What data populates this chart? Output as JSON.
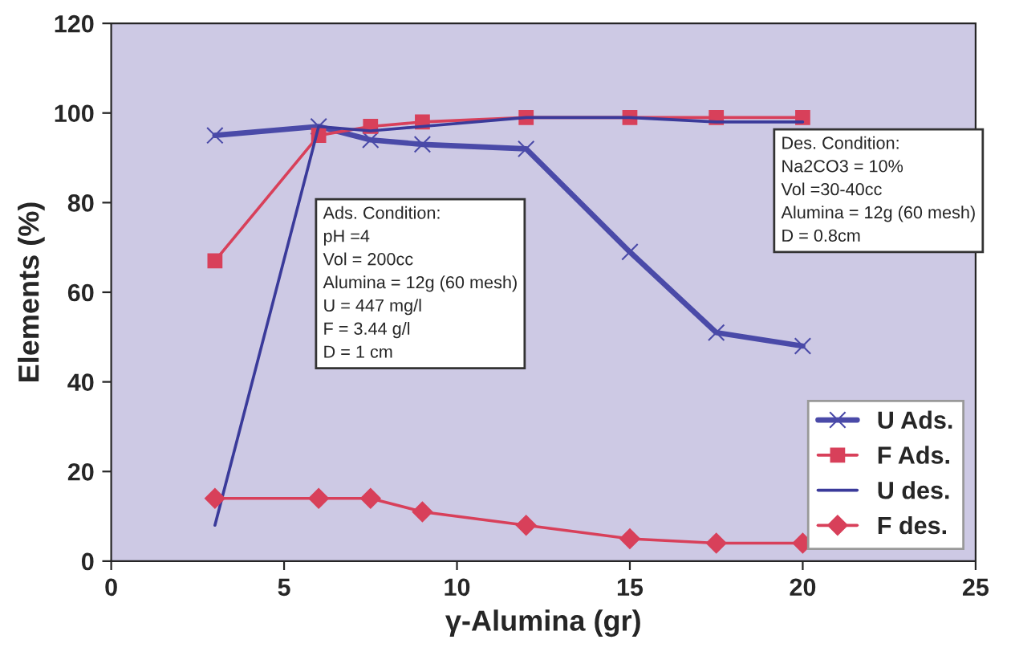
{
  "chart_data": {
    "type": "line",
    "xlabel": "γ-Alumina (gr)",
    "ylabel": "Elements (%)",
    "x": [
      3,
      6,
      7.5,
      9,
      12,
      15,
      17.5,
      20
    ],
    "series": [
      {
        "name": "U Ads.",
        "color": "#4a4aa8",
        "marker": "cross",
        "values": [
          95,
          97,
          94,
          93,
          92,
          69,
          51,
          48
        ]
      },
      {
        "name": "F Ads.",
        "color": "#d8405a",
        "marker": "square",
        "values": [
          67,
          95,
          97,
          98,
          99,
          99,
          99,
          99
        ]
      },
      {
        "name": "U des.",
        "color": "#3a3a9a",
        "marker": "none",
        "values": [
          8,
          97,
          96,
          97,
          99,
          99,
          98,
          98
        ]
      },
      {
        "name": "F des.",
        "color": "#d8405a",
        "marker": "diamond",
        "values": [
          14,
          14,
          14,
          11,
          8,
          5,
          4,
          4
        ]
      }
    ],
    "xlim": [
      0,
      25
    ],
    "xticks": [
      0,
      5,
      10,
      15,
      20,
      25
    ],
    "ylim": [
      0,
      120
    ],
    "yticks": [
      0,
      20,
      40,
      60,
      80,
      100,
      120
    ],
    "grid": false,
    "legend": "bottom right",
    "annotations": [
      "Ads. Condition:\npH =4\nVol = 200cc\nAlumina = 12g (60 mesh)\nU = 447 mg/l\nF = 3.44 g/l\nD = 1 cm",
      "Des. Condition:\nNa2CO3 = 10%\nVol =30-40cc\nAlumina = 12g (60 mesh)\nD = 0.8cm"
    ]
  }
}
